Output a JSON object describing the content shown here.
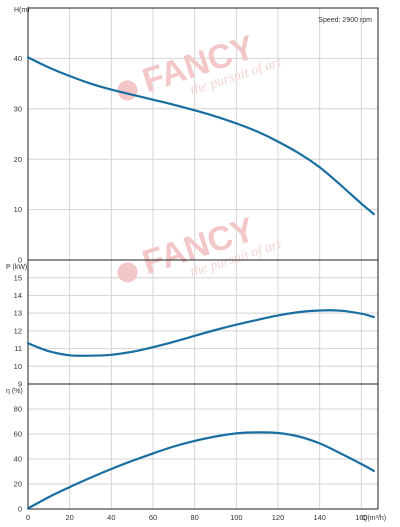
{
  "chart_data": [
    {
      "type": "line",
      "ylabel": "H(m)",
      "ylim": [
        0,
        50
      ],
      "yticks": [
        0,
        10,
        20,
        30,
        40
      ],
      "xlim": [
        0,
        168
      ],
      "grid": true,
      "annotation": "Speed: 2900 rpm",
      "series": [
        {
          "x": [
            0,
            10,
            20,
            30,
            40,
            50,
            60,
            70,
            80,
            90,
            100,
            110,
            120,
            130,
            140,
            150,
            160,
            166
          ],
          "y": [
            40.2,
            38.2,
            36.5,
            35.0,
            33.8,
            32.8,
            31.8,
            30.8,
            29.7,
            28.5,
            27.1,
            25.5,
            23.5,
            21.2,
            18.4,
            14.9,
            11.2,
            9.1
          ]
        }
      ]
    },
    {
      "type": "line",
      "ylabel": "P (kW)",
      "ylim": [
        9,
        16
      ],
      "yticks": [
        9,
        10,
        11,
        12,
        13,
        14,
        15
      ],
      "xlim": [
        0,
        168
      ],
      "grid": true,
      "series": [
        {
          "x": [
            0,
            10,
            20,
            30,
            40,
            50,
            60,
            70,
            80,
            90,
            100,
            110,
            120,
            130,
            140,
            150,
            160,
            166
          ],
          "y": [
            11.3,
            10.85,
            10.62,
            10.6,
            10.65,
            10.82,
            11.08,
            11.38,
            11.72,
            12.05,
            12.35,
            12.62,
            12.87,
            13.06,
            13.15,
            13.14,
            12.97,
            12.78
          ]
        }
      ]
    },
    {
      "type": "line",
      "ylabel": "η (%)",
      "ylim": [
        0,
        100
      ],
      "yticks": [
        0,
        20,
        40,
        60,
        80
      ],
      "xlabel": "Q(m³/h)",
      "xticks": [
        0,
        20,
        40,
        60,
        80,
        100,
        120,
        140,
        160
      ],
      "xlim": [
        0,
        168
      ],
      "grid": true,
      "series": [
        {
          "x": [
            0,
            10,
            20,
            30,
            40,
            50,
            60,
            70,
            80,
            90,
            100,
            110,
            120,
            130,
            140,
            150,
            160,
            166
          ],
          "y": [
            0.5,
            9.5,
            17.5,
            25.0,
            32.0,
            38.5,
            44.5,
            50.0,
            54.5,
            58.0,
            60.5,
            61.3,
            60.8,
            58.0,
            52.5,
            44.5,
            36.0,
            30.5
          ]
        }
      ]
    }
  ],
  "watermark": {
    "brand": "FANCY",
    "tagline": "the pursuit of art"
  },
  "colors": {
    "curve": "#1a6fa0",
    "grid": "#d4d4d4",
    "frame": "#222222",
    "watermark": "#f3c7c7"
  }
}
